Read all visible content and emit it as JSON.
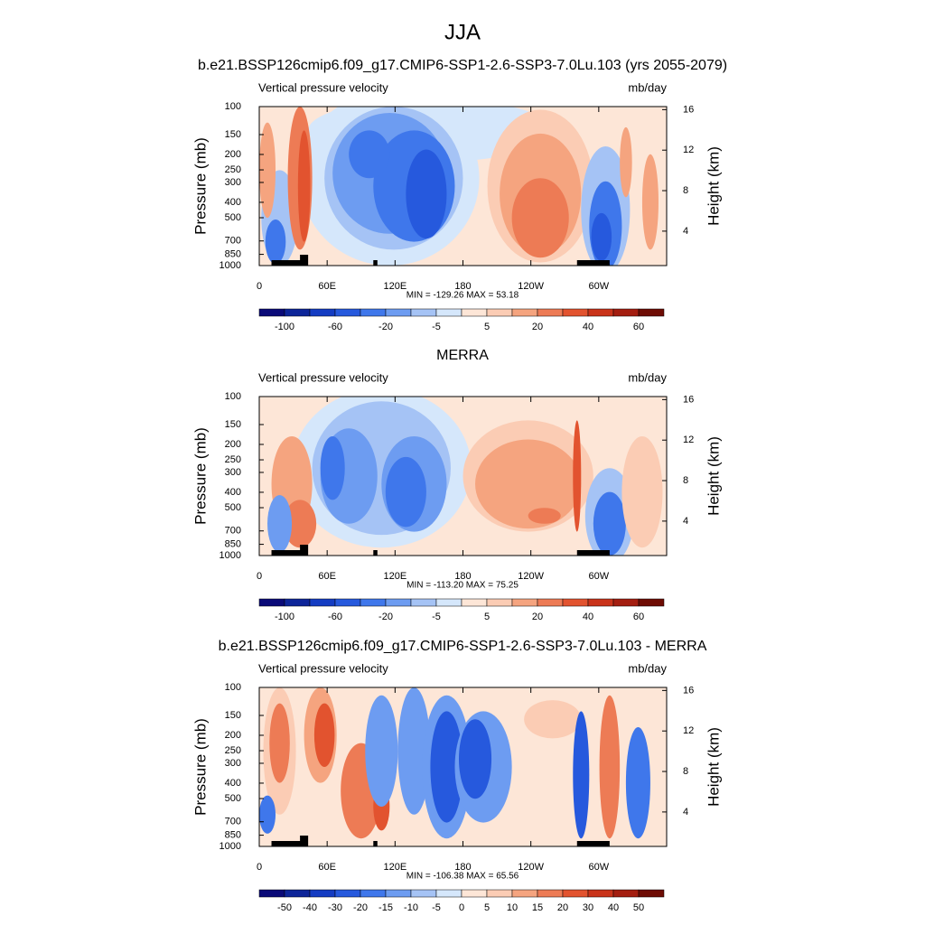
{
  "title": "JJA",
  "chart_data": [
    {
      "type": "contour",
      "title": "b.e21.BSSP126cmip6.f09_g17.CMIP6-SSP1-2.6-SSP3-7.0Lu.103 (yrs 2055-2079)",
      "left_string": "Vertical pressure velocity",
      "right_string": "mb/day",
      "y_label": "Pressure (mb)",
      "y2_label": "Height (km)",
      "min_max": "MIN = -129.26  MAX =  53.18",
      "xlim": [
        0,
        360
      ],
      "xticks": [
        0,
        {
          "value": 60,
          "label": "60E"
        },
        {
          "value": 120,
          "label": "120E"
        },
        180,
        {
          "value": 240,
          "label": "120W"
        },
        {
          "value": 300,
          "label": "60W"
        }
      ],
      "ylim": [
        1000,
        100
      ],
      "log_y": true,
      "yticks": [
        100,
        150,
        200,
        250,
        300,
        400,
        500,
        700,
        850,
        1000
      ],
      "y2lim": [
        0.6,
        16.3
      ],
      "y2ticks": [
        4,
        8,
        12,
        16
      ],
      "colorbar": {
        "colors": [
          "#0a0a78",
          "#0d2599",
          "#143cc2",
          "#2659dd",
          "#3f77eb",
          "#6d9cf1",
          "#a5c3f5",
          "#d5e7fb",
          "#fde6d7",
          "#fbccb4",
          "#f5a47f",
          "#ed7b55",
          "#e2532f",
          "#c9331a",
          "#a41e10",
          "#6e0c04"
        ],
        "ticks": [
          -100,
          -60,
          -20,
          -5,
          5,
          20,
          40,
          60
        ]
      }
    },
    {
      "type": "contour",
      "title": "MERRA",
      "left_string": "Vertical pressure velocity",
      "right_string": "mb/day",
      "y_label": "Pressure (mb)",
      "y2_label": "Height (km)",
      "min_max": "MIN = -113.20  MAX =  75.25",
      "xlim": [
        0,
        360
      ],
      "xticks": [
        0,
        {
          "value": 60,
          "label": "60E"
        },
        {
          "value": 120,
          "label": "120E"
        },
        180,
        {
          "value": 240,
          "label": "120W"
        },
        {
          "value": 300,
          "label": "60W"
        }
      ],
      "ylim": [
        1000,
        100
      ],
      "log_y": true,
      "yticks": [
        100,
        150,
        200,
        250,
        300,
        400,
        500,
        700,
        850,
        1000
      ],
      "y2lim": [
        0.6,
        16.3
      ],
      "y2ticks": [
        4,
        8,
        12,
        16
      ],
      "colorbar": {
        "colors": [
          "#0a0a78",
          "#0d2599",
          "#143cc2",
          "#2659dd",
          "#3f77eb",
          "#6d9cf1",
          "#a5c3f5",
          "#d5e7fb",
          "#fde6d7",
          "#fbccb4",
          "#f5a47f",
          "#ed7b55",
          "#e2532f",
          "#c9331a",
          "#a41e10",
          "#6e0c04"
        ],
        "ticks": [
          -100,
          -60,
          -20,
          -5,
          5,
          20,
          40,
          60
        ]
      }
    },
    {
      "type": "contour",
      "title": "b.e21.BSSP126cmip6.f09_g17.CMIP6-SSP1-2.6-SSP3-7.0Lu.103 - MERRA",
      "left_string": "Vertical pressure velocity",
      "right_string": "mb/day",
      "y_label": "Pressure (mb)",
      "y2_label": "Height (km)",
      "min_max": "MIN = -106.38  MAX =  65.56",
      "xlim": [
        0,
        360
      ],
      "xticks": [
        0,
        {
          "value": 60,
          "label": "60E"
        },
        {
          "value": 120,
          "label": "120E"
        },
        180,
        {
          "value": 240,
          "label": "120W"
        },
        {
          "value": 300,
          "label": "60W"
        }
      ],
      "ylim": [
        1000,
        100
      ],
      "log_y": true,
      "yticks": [
        100,
        150,
        200,
        250,
        300,
        400,
        500,
        700,
        850,
        1000
      ],
      "y2lim": [
        0.6,
        16.3
      ],
      "y2ticks": [
        4,
        8,
        12,
        16
      ],
      "colorbar": {
        "colors": [
          "#0a0a78",
          "#0d2599",
          "#143cc2",
          "#2659dd",
          "#3f77eb",
          "#6d9cf1",
          "#a5c3f5",
          "#d5e7fb",
          "#fde6d7",
          "#fbccb4",
          "#f5a47f",
          "#ed7b55",
          "#e2532f",
          "#c9331a",
          "#a41e10",
          "#6e0c04"
        ],
        "ticks": [
          -50,
          -40,
          -30,
          -20,
          -15,
          -10,
          -5,
          0,
          5,
          10,
          15,
          20,
          30,
          40,
          50
        ]
      }
    }
  ]
}
